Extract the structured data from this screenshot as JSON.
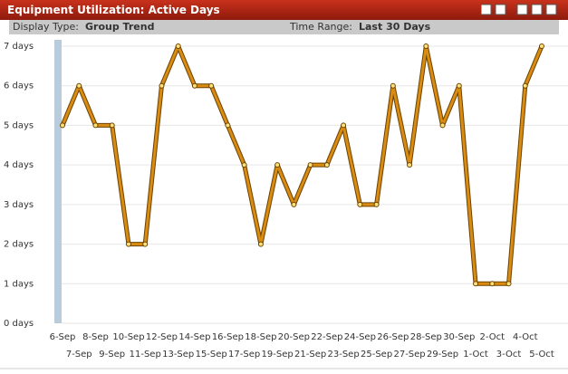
{
  "header": {
    "title": "Equipment Utilization: Active Days"
  },
  "toolbar": {
    "display_label": "Display Type:",
    "display_value": "Group Trend",
    "range_label": "Time Range:",
    "range_value": "Last 30 Days"
  },
  "chart_data": {
    "type": "line",
    "categories": [
      "6-Sep",
      "7-Sep",
      "8-Sep",
      "9-Sep",
      "10-Sep",
      "11-Sep",
      "12-Sep",
      "13-Sep",
      "14-Sep",
      "15-Sep",
      "16-Sep",
      "17-Sep",
      "18-Sep",
      "19-Sep",
      "20-Sep",
      "21-Sep",
      "22-Sep",
      "23-Sep",
      "24-Sep",
      "25-Sep",
      "26-Sep",
      "27-Sep",
      "28-Sep",
      "29-Sep",
      "30-Sep",
      "1-Oct",
      "2-Oct",
      "3-Oct",
      "4-Oct",
      "5-Oct"
    ],
    "values": [
      5,
      6,
      5,
      5,
      2,
      2,
      6,
      7,
      6,
      6,
      5,
      4,
      2,
      4,
      3,
      4,
      4,
      5,
      3,
      3,
      6,
      4,
      7,
      5,
      6,
      1,
      1,
      1,
      6,
      7
    ],
    "color": "#d98c10",
    "ylim": [
      0,
      7
    ],
    "yticks": [
      {
        "value": 0,
        "label": "0 days"
      },
      {
        "value": 1,
        "label": "1 days"
      },
      {
        "value": 2,
        "label": "2 days"
      },
      {
        "value": 3,
        "label": "3 days"
      },
      {
        "value": 4,
        "label": "4 days"
      },
      {
        "value": 5,
        "label": "5 days"
      },
      {
        "value": 6,
        "label": "6 days"
      },
      {
        "value": 7,
        "label": "7 days"
      }
    ],
    "grid": true
  }
}
